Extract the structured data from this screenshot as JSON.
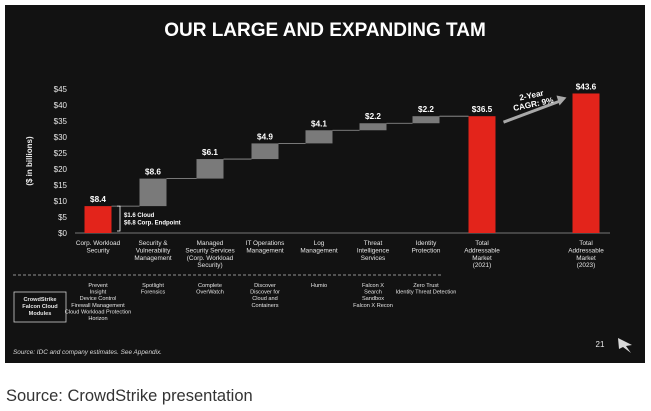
{
  "title": "OUR LARGE AND EXPANDING TAM",
  "caption": "Source: CrowdStrike presentation",
  "footnote": "Source: IDC and company estimates.  See Appendix.",
  "page_number": "21",
  "colors": {
    "red": "#e3241b",
    "gray": "#7a7a7a",
    "background": "#121212"
  },
  "chart_data": {
    "type": "bar",
    "ylabel": "($ in billions)",
    "ylim": [
      0,
      45
    ],
    "yticks": [
      "$0",
      "$5",
      "$10",
      "$15",
      "$20",
      "$25",
      "$30",
      "$35",
      "$40",
      "$45"
    ],
    "categories": [
      [
        "Corp. Workload",
        "Security"
      ],
      [
        "Security &",
        "Vulnerability",
        "Management"
      ],
      [
        "Managed",
        "Security Services",
        "(Corp. Workload",
        "Security)"
      ],
      [
        "IT Operations",
        "Management"
      ],
      [
        "Log",
        "Management"
      ],
      [
        "Threat",
        "Intelligence",
        "Services"
      ],
      [
        "Identity",
        "Protection"
      ],
      [
        "Total",
        "Addressable",
        "Market",
        "(2021)"
      ],
      [
        "Total",
        "Addressable",
        "Market",
        "(2023)"
      ]
    ],
    "bars": [
      {
        "label": "$8.4",
        "base": 0,
        "value": 8.4,
        "color": "red"
      },
      {
        "label": "$8.6",
        "base": 8.4,
        "value": 8.6,
        "color": "gray"
      },
      {
        "label": "$6.1",
        "base": 17.0,
        "value": 6.1,
        "color": "gray"
      },
      {
        "label": "$4.9",
        "base": 23.1,
        "value": 4.9,
        "color": "gray"
      },
      {
        "label": "$4.1",
        "base": 28.0,
        "value": 4.1,
        "color": "gray"
      },
      {
        "label": "$2.2",
        "base": 32.1,
        "value": 2.2,
        "color": "gray"
      },
      {
        "label": "$2.2",
        "base": 34.3,
        "value": 2.2,
        "color": "gray"
      },
      {
        "label": "$36.5",
        "base": 0,
        "value": 36.5,
        "color": "red"
      },
      {
        "label": "$43.6",
        "base": 0,
        "value": 43.6,
        "color": "red"
      }
    ],
    "annotations": {
      "first_bar_breakdown": [
        "$1.6 Cloud",
        "$6.8 Corp. Endpoint"
      ],
      "growth": [
        "2-Year",
        "CAGR: 9%"
      ]
    },
    "modules_label": [
      "CrowdStrike",
      "Falcon Cloud",
      "Modules"
    ],
    "modules": [
      [
        "Prevent",
        "Insight",
        "Device Control",
        "Firewall Management",
        "Cloud Workload Protection",
        "Horizon"
      ],
      [
        "Spotlight",
        "Forensics"
      ],
      [
        "Complete",
        "OverWatch"
      ],
      [
        "Discover",
        "Discover for",
        "Cloud and",
        "Containers"
      ],
      [
        "Humio"
      ],
      [
        "Falcon X",
        "Search",
        "Sandbox",
        "Falcon X Recon"
      ],
      [
        "Zero Trust",
        "Identity Threat Detection"
      ]
    ]
  }
}
